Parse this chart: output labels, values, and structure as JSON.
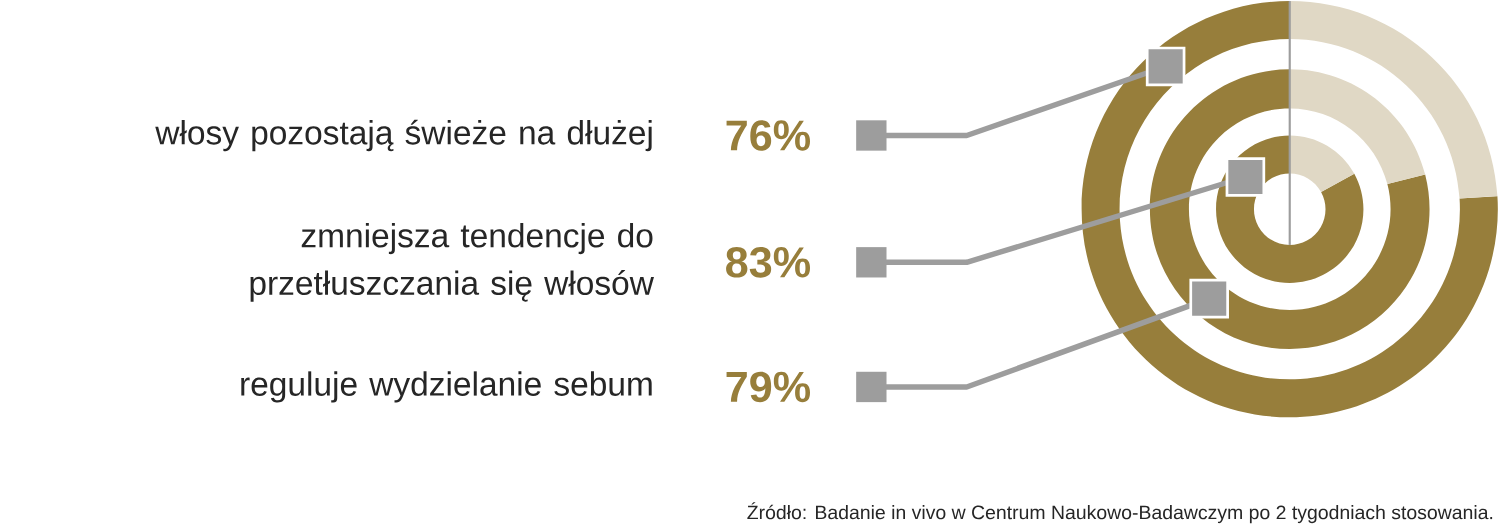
{
  "chart_data": {
    "type": "other",
    "categories": [
      "włosy pozostają świeże na dłużej",
      "zmniejsza tendencje do przetłuszczania się włosów",
      "reguluje wydzielanie sebum"
    ],
    "values": [
      76,
      83,
      79
    ],
    "value_labels": [
      "76%",
      "83%",
      "79%"
    ],
    "color": "#977e3b",
    "annotations": [
      "Źródło: Badanie in vivo w Centrum Naukowo-Badawczym po 2 tygodniach stosowania."
    ]
  }
}
